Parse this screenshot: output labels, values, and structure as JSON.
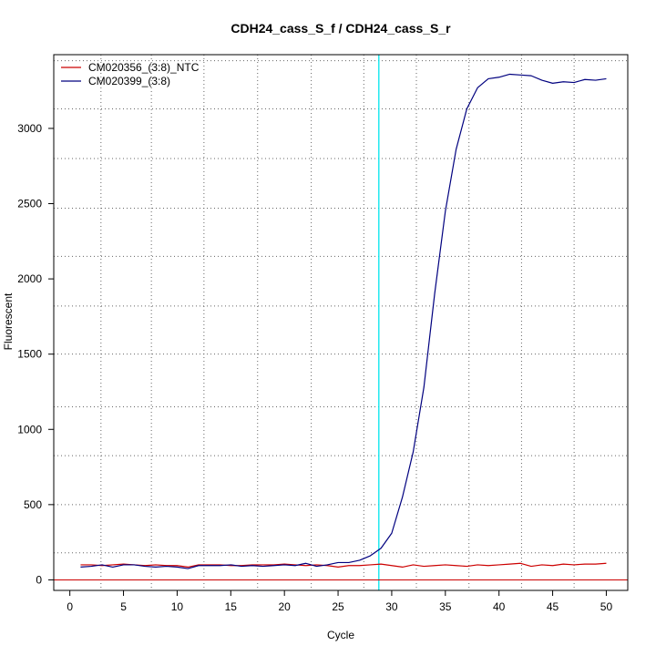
{
  "chart_data": {
    "type": "line",
    "title": "CDH24_cass_S_f / CDH24_cass_S_r",
    "xlabel": "Cycle",
    "ylabel": "Fluorescent",
    "xlim": [
      -1.5,
      52
    ],
    "ylim": [
      -70,
      3490
    ],
    "x_ticks": [
      0,
      5,
      10,
      15,
      20,
      25,
      30,
      35,
      40,
      45,
      50
    ],
    "y_ticks": [
      0,
      500,
      1000,
      1500,
      2000,
      2500,
      3000
    ],
    "x_tick_labels": [
      "0",
      "5",
      "10",
      "15",
      "20",
      "25",
      "30",
      "35",
      "40",
      "45",
      "50"
    ],
    "y_tick_labels": [
      "0",
      "500",
      "1000",
      "1500",
      "2000",
      "2500",
      "3000"
    ],
    "x_grid": [
      2.9,
      7.6,
      12.5,
      17.5,
      22.5,
      27.4,
      32.3,
      37.2,
      42.1,
      47.0
    ],
    "y_grid": [
      180,
      500,
      825,
      1150,
      1500,
      1820,
      2150,
      2470,
      2800,
      3130,
      3450
    ],
    "grid": true,
    "legend_position": "top-left",
    "threshold_x": 28.8,
    "threshold_color": "#00e5ee",
    "baseline_y": 0,
    "baseline_color": "#cc0000",
    "series": [
      {
        "name": "CM020356_(3:8)_NTC",
        "color": "#cc0000",
        "x": [
          1,
          2,
          3,
          4,
          5,
          6,
          7,
          8,
          9,
          10,
          11,
          12,
          13,
          14,
          15,
          16,
          17,
          18,
          19,
          20,
          21,
          22,
          23,
          24,
          25,
          26,
          27,
          28,
          29,
          30,
          31,
          32,
          33,
          34,
          35,
          36,
          37,
          38,
          39,
          40,
          41,
          42,
          43,
          44,
          45,
          46,
          47,
          48,
          49,
          50
        ],
        "y": [
          100,
          100,
          95,
          100,
          105,
          100,
          95,
          100,
          95,
          95,
          85,
          100,
          100,
          100,
          95,
          95,
          100,
          100,
          100,
          105,
          100,
          95,
          100,
          95,
          85,
          95,
          95,
          100,
          105,
          95,
          85,
          100,
          90,
          95,
          100,
          95,
          90,
          100,
          95,
          100,
          105,
          110,
          90,
          100,
          95,
          105,
          100,
          105,
          105,
          110
        ]
      },
      {
        "name": "CM020399_(3:8)",
        "color": "#00007f",
        "x": [
          1,
          2,
          3,
          4,
          5,
          6,
          7,
          8,
          9,
          10,
          11,
          12,
          13,
          14,
          15,
          16,
          17,
          18,
          19,
          20,
          21,
          22,
          23,
          24,
          25,
          26,
          27,
          28,
          29,
          30,
          31,
          32,
          33,
          34,
          35,
          36,
          37,
          38,
          39,
          40,
          41,
          42,
          43,
          44,
          45,
          46,
          47,
          48,
          49,
          50
        ],
        "y": [
          85,
          90,
          100,
          85,
          100,
          100,
          90,
          85,
          90,
          85,
          75,
          95,
          95,
          95,
          100,
          90,
          95,
          90,
          95,
          100,
          95,
          110,
          90,
          100,
          115,
          115,
          130,
          160,
          210,
          310,
          550,
          850,
          1280,
          1900,
          2450,
          2860,
          3130,
          3270,
          3330,
          3340,
          3360,
          3355,
          3350,
          3320,
          3300,
          3310,
          3305,
          3325,
          3320,
          3330
        ]
      }
    ]
  }
}
